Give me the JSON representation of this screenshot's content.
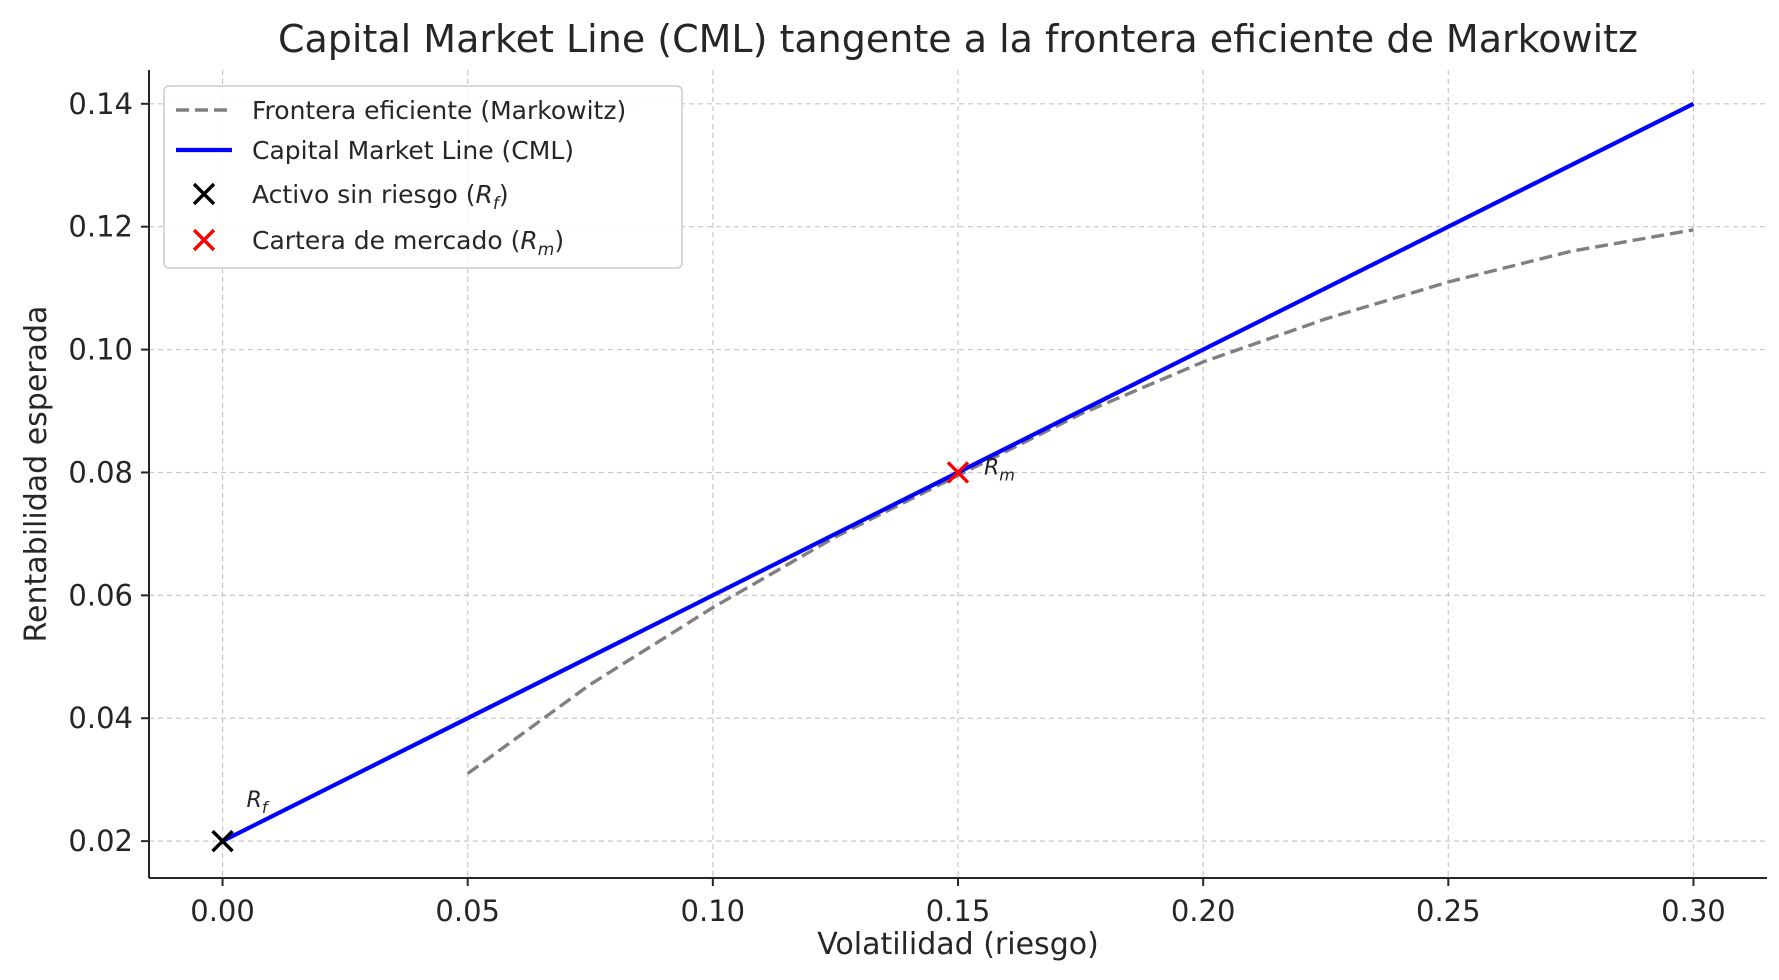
{
  "chart_data": {
    "type": "line",
    "title": "Capital Market Line (CML) tangente a la frontera eficiente de Markowitz",
    "xlabel": "Volatilidad (riesgo)",
    "ylabel": "Rentabilidad esperada",
    "xlim": [
      -0.015,
      0.315
    ],
    "ylim": [
      0.014,
      0.1455
    ],
    "xticks": [
      "0.00",
      "0.05",
      "0.10",
      "0.15",
      "0.20",
      "0.25",
      "0.30"
    ],
    "yticks": [
      "0.02",
      "0.04",
      "0.06",
      "0.08",
      "0.10",
      "0.12",
      "0.14"
    ],
    "grid": true,
    "legend_position": "top-left",
    "series": [
      {
        "name": "Frontera eficiente (Markowitz)",
        "style": "dashed",
        "color": "#808080",
        "x": [
          0.05,
          0.075,
          0.1,
          0.125,
          0.15,
          0.175,
          0.2,
          0.225,
          0.25,
          0.275,
          0.3
        ],
        "y": [
          0.031,
          0.0455,
          0.058,
          0.0695,
          0.0795,
          0.0895,
          0.098,
          0.105,
          0.111,
          0.116,
          0.1195
        ]
      },
      {
        "name": "Capital Market Line (CML)",
        "style": "solid",
        "color": "#0000ff",
        "x": [
          0.0,
          0.3
        ],
        "y": [
          0.02,
          0.14
        ]
      }
    ],
    "points": [
      {
        "legend": "Activo sin riesgo (",
        "sym": "R",
        "sub": "f",
        "close": ")",
        "annotation": "R",
        "annotation_sub": "f",
        "x": 0.0,
        "y": 0.02,
        "color": "#000000",
        "marker": "x"
      },
      {
        "legend": "Cartera de mercado (",
        "sym": "R",
        "sub": "m",
        "close": ")",
        "annotation": "R",
        "annotation_sub": "m",
        "x": 0.15,
        "y": 0.08,
        "color": "#ff0000",
        "marker": "x"
      }
    ]
  }
}
